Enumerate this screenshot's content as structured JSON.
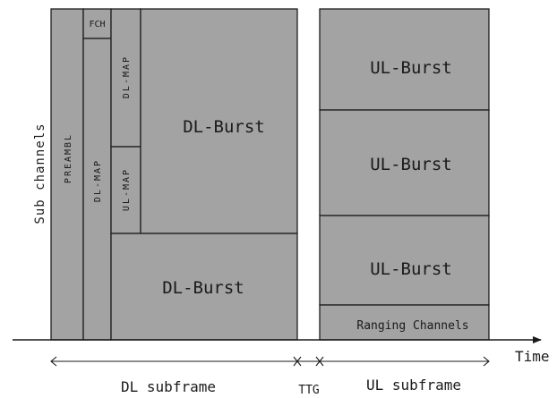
{
  "axes": {
    "y_label": "Sub channels",
    "x_label": "Time"
  },
  "dl_subframe": {
    "preamble": "PREAMBL",
    "fch": "FCH",
    "dl_map_left": "DL-MAP",
    "dl_map_top": "DL-MAP",
    "ul_map": "UL-MAP",
    "dl_burst_upper": "DL-Burst",
    "dl_burst_lower": "DL-Burst"
  },
  "ul_subframe": {
    "bursts": [
      "UL-Burst",
      "UL-Burst",
      "UL-Burst"
    ],
    "ranging": "Ranging Channels"
  },
  "timeline": {
    "dl_label": "DL subframe",
    "gap_label": "TTG",
    "ul_label": "UL subframe"
  }
}
